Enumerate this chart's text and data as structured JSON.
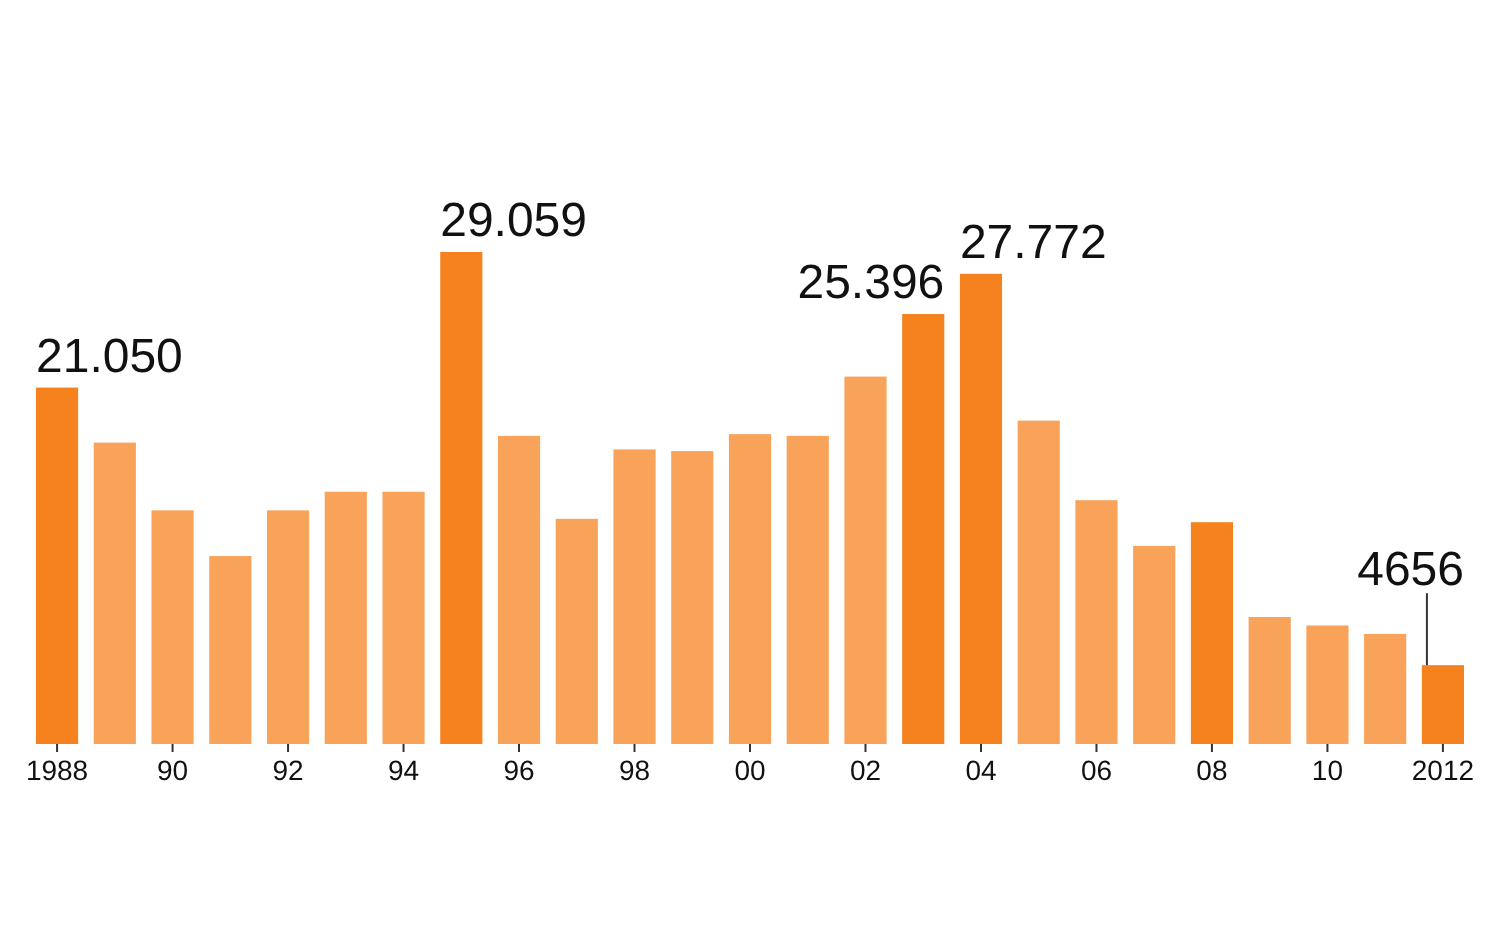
{
  "chart_data": {
    "type": "bar",
    "categories": [
      "1988",
      null,
      "90",
      null,
      "92",
      null,
      "94",
      null,
      "96",
      null,
      "98",
      null,
      "00",
      null,
      "02",
      null,
      "04",
      null,
      "06",
      null,
      "08",
      null,
      "10",
      null,
      "2012"
    ],
    "values": [
      21050,
      17800,
      13800,
      11100,
      13800,
      14900,
      14900,
      29059,
      18200,
      13300,
      17400,
      17300,
      18300,
      18200,
      21700,
      25396,
      27772,
      19100,
      14400,
      11700,
      13100,
      7500,
      7000,
      6500,
      4656
    ],
    "value_labels": [
      "21.050",
      null,
      null,
      null,
      null,
      null,
      null,
      "29.059",
      null,
      null,
      null,
      null,
      null,
      null,
      null,
      "25.396",
      "27.772",
      null,
      null,
      null,
      null,
      null,
      null,
      null,
      "4656"
    ],
    "colors": [
      "#f5821f",
      "#f9a25a",
      "#f9a25a",
      "#f9a25a",
      "#f9a25a",
      "#f9a25a",
      "#f9a25a",
      "#f5821f",
      "#f9a25a",
      "#f9a25a",
      "#f9a25a",
      "#f9a25a",
      "#f9a25a",
      "#f9a25a",
      "#f9a25a",
      "#f5821f",
      "#f5821f",
      "#f9a25a",
      "#f9a25a",
      "#f9a25a",
      "#f5821f",
      "#f9a25a",
      "#f9a25a",
      "#f9a25a",
      "#f5821f"
    ]
  }
}
